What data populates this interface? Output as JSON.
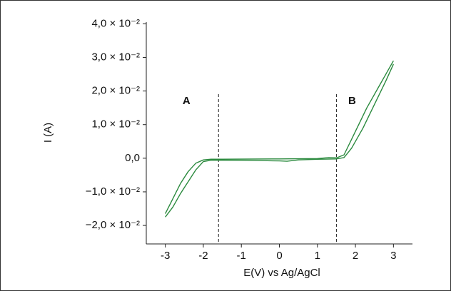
{
  "chart_data": {
    "type": "line",
    "x_label": "E(V) vs Ag/AgCl",
    "y_label": "I (A)",
    "xlim": [
      -3.5,
      3.5
    ],
    "ylim": [
      -0.0255,
      0.0405
    ],
    "xticks": [
      -3,
      -2,
      -1,
      0,
      1,
      2,
      3
    ],
    "yticks": [
      {
        "value": 0.04,
        "label": "4,0 × 10⁻²"
      },
      {
        "value": 0.03,
        "label": "3,0 × 10⁻²"
      },
      {
        "value": 0.02,
        "label": "2,0 × 10⁻²"
      },
      {
        "value": 0.01,
        "label": "1,0 × 10⁻²"
      },
      {
        "value": 0,
        "label": "0,0"
      },
      {
        "value": -0.01,
        "label": "−1,0 × 10⁻²"
      },
      {
        "value": -0.02,
        "label": "−2,0 × 10⁻²"
      }
    ],
    "vlines": [
      -1.6,
      1.5
    ],
    "annotations": [
      "A",
      "B"
    ],
    "series": [
      {
        "color": "#2b8a3e",
        "x": [
          -3.0,
          -2.8,
          -2.6,
          -2.4,
          -2.2,
          -2.0,
          -1.8,
          -1.5,
          0,
          1.0,
          1.3,
          1.5,
          1.7,
          2.0,
          2.3,
          2.6,
          2.8,
          3.0
        ],
        "values": [
          -0.0165,
          -0.012,
          -0.0075,
          -0.004,
          -0.0015,
          -0.0005,
          -0.0003,
          -0.0003,
          -0.0002,
          -0.0001,
          0.0002,
          0.0001,
          0.001,
          0.008,
          0.015,
          0.021,
          0.025,
          0.029
        ]
      },
      {
        "color": "#2b8a3e",
        "x": [
          3.0,
          2.8,
          2.5,
          2.2,
          1.9,
          1.7,
          1.5,
          1.0,
          0.5,
          0.2,
          0,
          -1.0,
          -1.8,
          -2.0,
          -2.2,
          -2.4,
          -2.6,
          -2.8,
          -3.0
        ],
        "values": [
          0.028,
          0.023,
          0.016,
          0.009,
          0.003,
          0.0002,
          -0.0002,
          -0.0003,
          -0.0005,
          -0.0009,
          -0.0008,
          -0.0006,
          -0.0006,
          -0.001,
          -0.0035,
          -0.007,
          -0.0105,
          -0.0145,
          -0.0175
        ]
      }
    ]
  }
}
